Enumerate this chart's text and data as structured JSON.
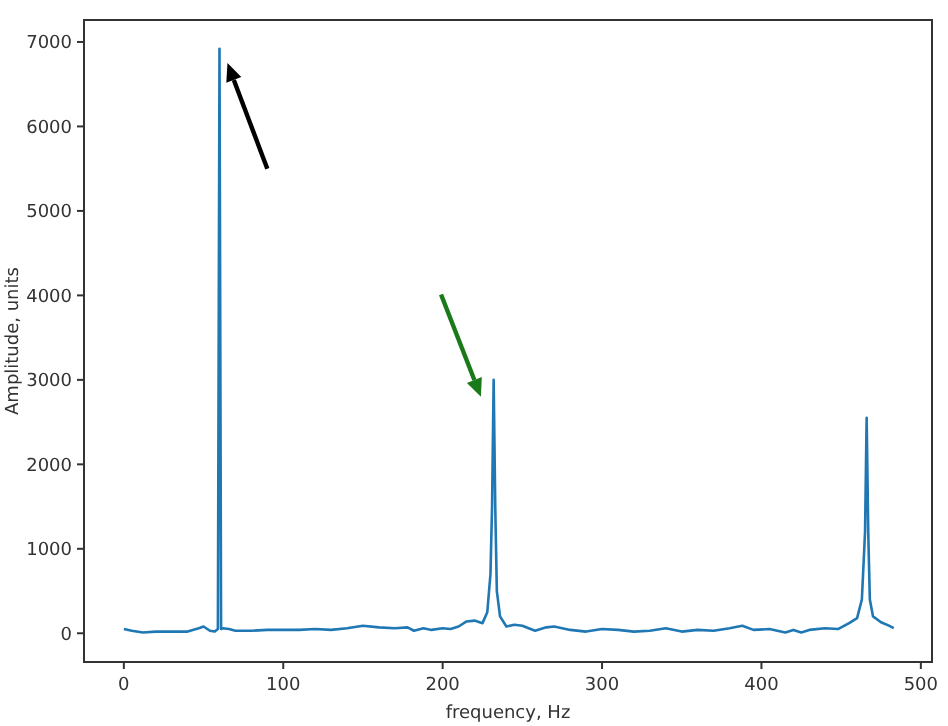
{
  "chart_data": {
    "type": "line",
    "xlabel": "frequency, Hz",
    "ylabel": "Amplitude, units",
    "xlim": [
      -25,
      507
    ],
    "ylim": [
      -340,
      7260
    ],
    "xticks": [
      0,
      100,
      200,
      300,
      400,
      500
    ],
    "yticks": [
      0,
      1000,
      2000,
      3000,
      4000,
      5000,
      6000,
      7000
    ],
    "grid": false,
    "marker": "none",
    "line_style": "solid",
    "series": [
      {
        "color": "#1f77b4",
        "x": [
          0,
          5,
          12,
          20,
          30,
          40,
          47,
          50,
          54,
          57,
          59,
          60,
          61,
          62,
          66,
          70,
          80,
          90,
          100,
          110,
          120,
          130,
          140,
          150,
          160,
          170,
          178,
          182,
          188,
          193,
          200,
          205,
          210,
          215,
          220,
          225,
          228,
          230,
          231,
          232,
          233,
          234,
          236,
          240,
          245,
          250,
          258,
          265,
          270,
          280,
          290,
          300,
          310,
          320,
          330,
          340,
          350,
          360,
          370,
          380,
          388,
          395,
          405,
          415,
          420,
          425,
          430,
          440,
          448,
          455,
          460,
          463,
          465,
          466,
          467,
          468,
          470,
          475,
          480,
          483
        ],
        "values": [
          50,
          30,
          10,
          20,
          20,
          20,
          60,
          80,
          30,
          20,
          50,
          6920,
          50,
          60,
          50,
          30,
          30,
          40,
          40,
          40,
          50,
          40,
          60,
          90,
          70,
          60,
          70,
          30,
          60,
          40,
          60,
          50,
          80,
          140,
          150,
          120,
          250,
          700,
          1500,
          3000,
          1500,
          500,
          200,
          80,
          100,
          90,
          30,
          70,
          80,
          40,
          20,
          50,
          40,
          20,
          30,
          60,
          20,
          40,
          30,
          60,
          90,
          40,
          50,
          10,
          40,
          10,
          40,
          60,
          50,
          120,
          180,
          400,
          1200,
          2550,
          1200,
          400,
          200,
          130,
          90,
          60
        ]
      }
    ]
  }
}
